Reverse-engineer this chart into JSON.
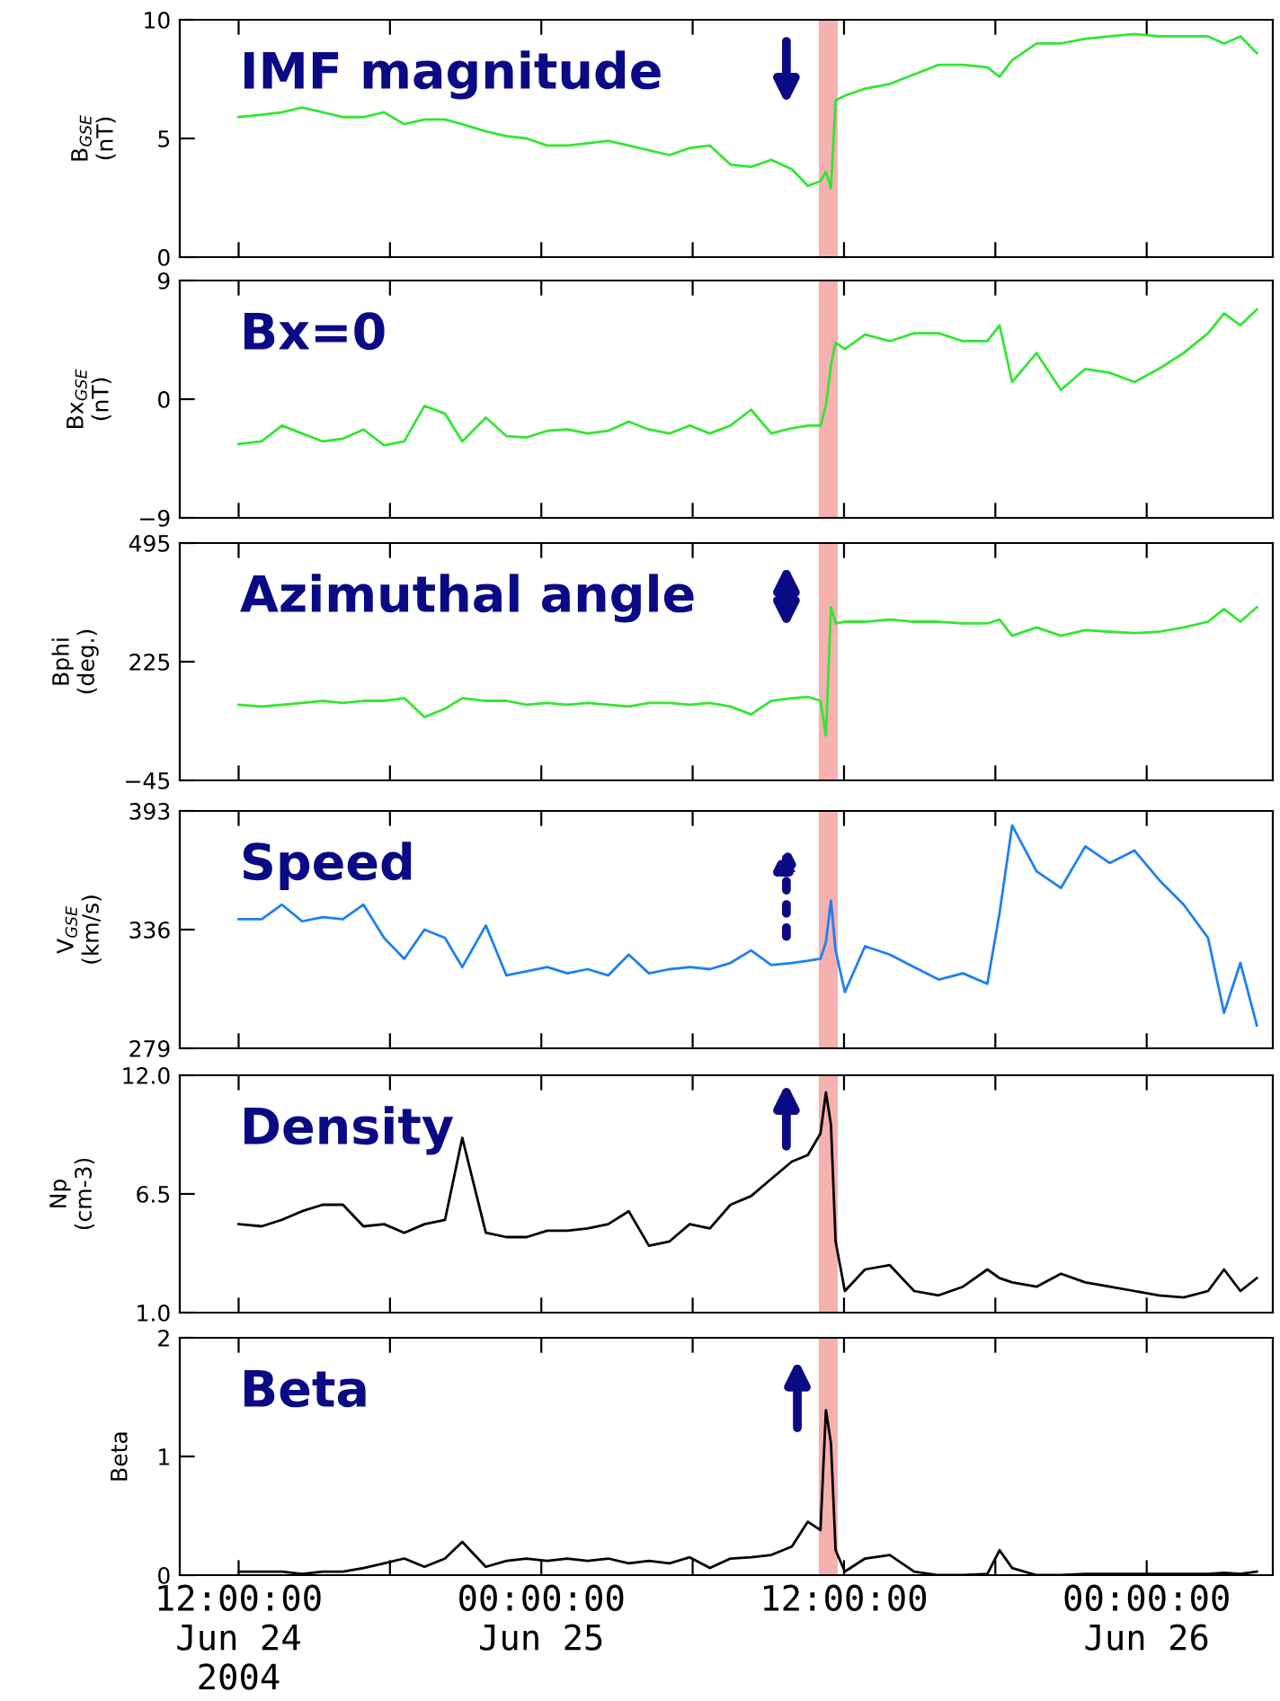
{
  "chart_data": [
    {
      "type": "line",
      "ylabel": "B$_{GSE}$\n(nT)",
      "annotations": [
        "IMF magnitude"
      ],
      "tick_labels": "y",
      "grid": false,
      "legend": false,
      "x": [
        "2004-06-24T12:00",
        "2004-06-24T12:55",
        "2004-06-24T13:43",
        "2004-06-24T14:31",
        "2004-06-24T15:20",
        "2004-06-24T16:08",
        "2004-06-24T16:57",
        "2004-06-24T17:46",
        "2004-06-24T18:34",
        "2004-06-24T19:22",
        "2004-06-24T20:11",
        "2004-06-24T20:52",
        "2004-06-24T21:48",
        "2004-06-24T22:37",
        "2004-06-24T23:25",
        "2004-06-25T00:14",
        "2004-06-25T01:02",
        "2004-06-25T01:50",
        "2004-06-25T02:39",
        "2004-06-25T03:28",
        "2004-06-25T04:16",
        "2004-06-25T05:05",
        "2004-06-25T05:53",
        "2004-06-25T06:41",
        "2004-06-25T07:30",
        "2004-06-25T08:19",
        "2004-06-25T09:07",
        "2004-06-25T09:56",
        "2004-06-25T10:34",
        "2004-06-25T11:04",
        "2004-06-25T11:17",
        "2004-06-25T11:29",
        "2004-06-25T11:40",
        "2004-06-25T12:02",
        "2004-06-25T12:50",
        "2004-06-25T13:49",
        "2004-06-25T14:47",
        "2004-06-25T15:45",
        "2004-06-25T16:43",
        "2004-06-25T17:41",
        "2004-06-25T18:10",
        "2004-06-25T18:40",
        "2004-06-25T19:38",
        "2004-06-25T20:36",
        "2004-06-25T21:34",
        "2004-06-25T22:32",
        "2004-06-25T23:31",
        "2004-06-26T00:29",
        "2004-06-26T01:28",
        "2004-06-26T02:26",
        "2004-06-26T03:04",
        "2004-06-26T03:43",
        "2004-06-26T04:22"
      ],
      "xlim": [
        "2004-06-24T09:40",
        "2004-06-26T05:00"
      ],
      "xticks": [
        {
          "value": "2004-06-24T12:00",
          "label": null
        },
        {
          "value": "2004-06-24T18:00",
          "label": null
        },
        {
          "value": "2004-06-25T00:00",
          "label": null
        },
        {
          "value": "2004-06-25T06:00",
          "label": null
        },
        {
          "value": "2004-06-25T12:00",
          "label": null
        },
        {
          "value": "2004-06-25T18:00",
          "label": null
        },
        {
          "value": "2004-06-26T00:00",
          "label": null
        }
      ],
      "ylim": [
        0,
        10
      ],
      "yticks": [
        0,
        5,
        10
      ],
      "bands": [
        {
          "axis": "x",
          "from": "2004-06-25T11:00",
          "to": "2004-06-25T11:45",
          "color": "#f5b0b0"
        }
      ],
      "series": [
        {
          "color": "#33e633",
          "values": [
            5.9,
            6.0,
            6.1,
            6.3,
            6.1,
            5.9,
            5.9,
            6.1,
            5.6,
            5.8,
            5.8,
            5.6,
            5.3,
            5.1,
            5.0,
            4.7,
            4.7,
            4.8,
            4.9,
            4.7,
            4.5,
            4.3,
            4.6,
            4.7,
            3.9,
            3.8,
            4.1,
            3.7,
            3.0,
            3.2,
            3.6,
            2.9,
            6.6,
            6.8,
            7.1,
            7.3,
            7.7,
            8.1,
            8.1,
            8.0,
            7.6,
            8.3,
            9.0,
            9.0,
            9.2,
            9.3,
            9.4,
            9.3,
            9.3,
            9.3,
            9.0,
            9.3,
            8.6
          ]
        }
      ]
    },
    {
      "type": "line",
      "ylabel": "Bx$_{GSE}$\n(nT)",
      "annotations": [
        "Bx=0"
      ],
      "tick_labels": "y",
      "grid": false,
      "legend": false,
      "x": [
        "2004-06-24T12:00",
        "2004-06-24T12:55",
        "2004-06-24T13:43",
        "2004-06-24T14:31",
        "2004-06-24T15:20",
        "2004-06-24T16:08",
        "2004-06-24T16:57",
        "2004-06-24T17:46",
        "2004-06-24T18:34",
        "2004-06-24T19:22",
        "2004-06-24T20:11",
        "2004-06-24T20:52",
        "2004-06-24T21:48",
        "2004-06-24T22:37",
        "2004-06-24T23:25",
        "2004-06-25T00:14",
        "2004-06-25T01:02",
        "2004-06-25T01:50",
        "2004-06-25T02:39",
        "2004-06-25T03:28",
        "2004-06-25T04:16",
        "2004-06-25T05:05",
        "2004-06-25T05:53",
        "2004-06-25T06:41",
        "2004-06-25T07:30",
        "2004-06-25T08:19",
        "2004-06-25T09:07",
        "2004-06-25T09:56",
        "2004-06-25T10:34",
        "2004-06-25T11:04",
        "2004-06-25T11:17",
        "2004-06-25T11:29",
        "2004-06-25T11:40",
        "2004-06-25T12:02",
        "2004-06-25T12:50",
        "2004-06-25T13:49",
        "2004-06-25T14:47",
        "2004-06-25T15:45",
        "2004-06-25T16:43",
        "2004-06-25T17:41",
        "2004-06-25T18:10",
        "2004-06-25T18:40",
        "2004-06-25T19:38",
        "2004-06-25T20:36",
        "2004-06-25T21:34",
        "2004-06-25T22:32",
        "2004-06-25T23:31",
        "2004-06-26T00:29",
        "2004-06-26T01:28",
        "2004-06-26T02:26",
        "2004-06-26T03:04",
        "2004-06-26T03:43",
        "2004-06-26T04:22"
      ],
      "xlim": [
        "2004-06-24T09:40",
        "2004-06-26T05:00"
      ],
      "xticks": [
        {
          "value": "2004-06-24T12:00",
          "label": null
        },
        {
          "value": "2004-06-24T18:00",
          "label": null
        },
        {
          "value": "2004-06-25T00:00",
          "label": null
        },
        {
          "value": "2004-06-25T06:00",
          "label": null
        },
        {
          "value": "2004-06-25T12:00",
          "label": null
        },
        {
          "value": "2004-06-25T18:00",
          "label": null
        },
        {
          "value": "2004-06-26T00:00",
          "label": null
        }
      ],
      "ylim": [
        -9,
        9
      ],
      "yticks": [
        {
          "value": -9,
          "label": "−9"
        },
        0,
        9
      ],
      "bands": [
        {
          "axis": "x",
          "from": "2004-06-25T11:00",
          "to": "2004-06-25T11:45",
          "color": "#f5b0b0"
        }
      ],
      "series": [
        {
          "color": "#33e633",
          "values": [
            -3.4,
            -3.2,
            -2.0,
            -2.6,
            -3.2,
            -3.0,
            -2.3,
            -3.5,
            -3.2,
            -0.5,
            -1.1,
            -3.2,
            -1.4,
            -2.8,
            -2.9,
            -2.4,
            -2.3,
            -2.6,
            -2.4,
            -1.7,
            -2.3,
            -2.6,
            -2.0,
            -2.6,
            -2.0,
            -0.8,
            -2.6,
            -2.2,
            -2.0,
            -2.0,
            -0.5,
            2.6,
            4.3,
            3.8,
            4.9,
            4.4,
            5.0,
            5.0,
            4.4,
            4.4,
            5.6,
            1.3,
            3.5,
            0.7,
            2.3,
            2.0,
            1.3,
            2.3,
            3.5,
            5.0,
            6.5,
            5.6,
            6.8
          ]
        }
      ]
    },
    {
      "type": "line",
      "ylabel": "Bphi\n(deg.)",
      "annotations": [
        "Azimuthal angle"
      ],
      "tick_labels": "y",
      "grid": false,
      "legend": false,
      "x": [
        "2004-06-24T12:00",
        "2004-06-24T12:55",
        "2004-06-24T13:43",
        "2004-06-24T14:31",
        "2004-06-24T15:20",
        "2004-06-24T16:08",
        "2004-06-24T16:57",
        "2004-06-24T17:46",
        "2004-06-24T18:34",
        "2004-06-24T19:22",
        "2004-06-24T20:11",
        "2004-06-24T20:52",
        "2004-06-24T21:48",
        "2004-06-24T22:37",
        "2004-06-24T23:25",
        "2004-06-25T00:14",
        "2004-06-25T01:02",
        "2004-06-25T01:50",
        "2004-06-25T02:39",
        "2004-06-25T03:28",
        "2004-06-25T04:16",
        "2004-06-25T05:05",
        "2004-06-25T05:53",
        "2004-06-25T06:41",
        "2004-06-25T07:30",
        "2004-06-25T08:19",
        "2004-06-25T09:07",
        "2004-06-25T09:56",
        "2004-06-25T10:34",
        "2004-06-25T11:04",
        "2004-06-25T11:17",
        "2004-06-25T11:29",
        "2004-06-25T11:40",
        "2004-06-25T12:02",
        "2004-06-25T12:50",
        "2004-06-25T13:49",
        "2004-06-25T14:47",
        "2004-06-25T15:45",
        "2004-06-25T16:43",
        "2004-06-25T17:41",
        "2004-06-25T18:10",
        "2004-06-25T18:40",
        "2004-06-25T19:38",
        "2004-06-25T20:36",
        "2004-06-25T21:34",
        "2004-06-25T22:32",
        "2004-06-25T23:31",
        "2004-06-26T00:29",
        "2004-06-26T01:28",
        "2004-06-26T02:26",
        "2004-06-26T03:04",
        "2004-06-26T03:43",
        "2004-06-26T04:22"
      ],
      "xlim": [
        "2004-06-24T09:40",
        "2004-06-26T05:00"
      ],
      "xticks": [
        {
          "value": "2004-06-24T12:00",
          "label": null
        },
        {
          "value": "2004-06-24T18:00",
          "label": null
        },
        {
          "value": "2004-06-25T00:00",
          "label": null
        },
        {
          "value": "2004-06-25T06:00",
          "label": null
        },
        {
          "value": "2004-06-25T12:00",
          "label": null
        },
        {
          "value": "2004-06-25T18:00",
          "label": null
        },
        {
          "value": "2004-06-26T00:00",
          "label": null
        }
      ],
      "ylim": [
        -45,
        495
      ],
      "yticks": [
        {
          "value": -45,
          "label": "−45"
        },
        225,
        495
      ],
      "bands": [
        {
          "axis": "x",
          "from": "2004-06-25T11:00",
          "to": "2004-06-25T11:45",
          "color": "#f5b0b0"
        }
      ],
      "series": [
        {
          "color": "#33e633",
          "values": [
            127,
            123,
            127,
            131,
            136,
            131,
            136,
            136,
            142,
            99,
            118,
            142,
            136,
            136,
            127,
            131,
            127,
            131,
            127,
            123,
            131,
            131,
            127,
            131,
            123,
            105,
            136,
            142,
            145,
            136,
            57,
            349,
            312,
            316,
            316,
            321,
            316,
            316,
            312,
            312,
            321,
            284,
            303,
            284,
            297,
            293,
            290,
            293,
            303,
            316,
            345,
            316,
            349
          ]
        }
      ]
    },
    {
      "type": "line",
      "ylabel": "V$_{GSE}$\n(km/s)",
      "annotations": [
        "Speed"
      ],
      "tick_labels": "y",
      "grid": false,
      "legend": false,
      "x": [
        "2004-06-24T12:00",
        "2004-06-24T12:55",
        "2004-06-24T13:43",
        "2004-06-24T14:31",
        "2004-06-24T15:20",
        "2004-06-24T16:08",
        "2004-06-24T16:57",
        "2004-06-24T17:46",
        "2004-06-24T18:34",
        "2004-06-24T19:22",
        "2004-06-24T20:11",
        "2004-06-24T20:52",
        "2004-06-24T21:48",
        "2004-06-24T22:37",
        "2004-06-24T23:25",
        "2004-06-25T00:14",
        "2004-06-25T01:02",
        "2004-06-25T01:50",
        "2004-06-25T02:39",
        "2004-06-25T03:28",
        "2004-06-25T04:16",
        "2004-06-25T05:05",
        "2004-06-25T05:53",
        "2004-06-25T06:41",
        "2004-06-25T07:30",
        "2004-06-25T08:19",
        "2004-06-25T09:07",
        "2004-06-25T09:56",
        "2004-06-25T10:34",
        "2004-06-25T11:04",
        "2004-06-25T11:17",
        "2004-06-25T11:29",
        "2004-06-25T11:40",
        "2004-06-25T12:02",
        "2004-06-25T12:50",
        "2004-06-25T13:49",
        "2004-06-25T14:47",
        "2004-06-25T15:45",
        "2004-06-25T16:43",
        "2004-06-25T17:41",
        "2004-06-25T18:10",
        "2004-06-25T18:40",
        "2004-06-25T19:38",
        "2004-06-25T20:36",
        "2004-06-25T21:34",
        "2004-06-25T22:32",
        "2004-06-25T23:31",
        "2004-06-26T00:29",
        "2004-06-26T01:28",
        "2004-06-26T02:26",
        "2004-06-26T03:04",
        "2004-06-26T03:43",
        "2004-06-26T04:22"
      ],
      "xlim": [
        "2004-06-24T09:40",
        "2004-06-26T05:00"
      ],
      "xticks": [
        {
          "value": "2004-06-24T12:00",
          "label": null
        },
        {
          "value": "2004-06-24T18:00",
          "label": null
        },
        {
          "value": "2004-06-25T00:00",
          "label": null
        },
        {
          "value": "2004-06-25T06:00",
          "label": null
        },
        {
          "value": "2004-06-25T12:00",
          "label": null
        },
        {
          "value": "2004-06-25T18:00",
          "label": null
        },
        {
          "value": "2004-06-26T00:00",
          "label": null
        }
      ],
      "ylim": [
        279,
        393
      ],
      "yticks": [
        279,
        336,
        393
      ],
      "bands": [
        {
          "axis": "x",
          "from": "2004-06-25T11:00",
          "to": "2004-06-25T11:45",
          "color": "#f5b0b0"
        }
      ],
      "series": [
        {
          "color": "#1e80ee",
          "values": [
            341,
            341,
            348,
            340,
            342,
            341,
            348,
            332,
            322,
            336,
            332,
            318,
            338,
            314,
            316,
            318,
            315,
            317,
            314,
            324,
            315,
            317,
            318,
            317,
            320,
            326,
            319,
            320,
            321,
            322,
            330,
            350,
            326,
            306,
            328,
            324,
            318,
            312,
            315,
            310,
            344,
            386,
            364,
            356,
            376,
            368,
            374,
            360,
            348,
            332,
            296,
            320,
            290
          ]
        }
      ]
    },
    {
      "type": "line",
      "ylabel": "Np\n(cm-3)",
      "annotations": [
        "Density"
      ],
      "tick_labels": "y",
      "grid": false,
      "legend": false,
      "x": [
        "2004-06-24T12:00",
        "2004-06-24T12:55",
        "2004-06-24T13:43",
        "2004-06-24T14:31",
        "2004-06-24T15:20",
        "2004-06-24T16:08",
        "2004-06-24T16:57",
        "2004-06-24T17:46",
        "2004-06-24T18:34",
        "2004-06-24T19:22",
        "2004-06-24T20:11",
        "2004-06-24T20:52",
        "2004-06-24T21:48",
        "2004-06-24T22:37",
        "2004-06-24T23:25",
        "2004-06-25T00:14",
        "2004-06-25T01:02",
        "2004-06-25T01:50",
        "2004-06-25T02:39",
        "2004-06-25T03:28",
        "2004-06-25T04:16",
        "2004-06-25T05:05",
        "2004-06-25T05:53",
        "2004-06-25T06:41",
        "2004-06-25T07:30",
        "2004-06-25T08:19",
        "2004-06-25T09:07",
        "2004-06-25T09:56",
        "2004-06-25T10:34",
        "2004-06-25T11:04",
        "2004-06-25T11:17",
        "2004-06-25T11:29",
        "2004-06-25T11:40",
        "2004-06-25T12:02",
        "2004-06-25T12:50",
        "2004-06-25T13:49",
        "2004-06-25T14:47",
        "2004-06-25T15:45",
        "2004-06-25T16:43",
        "2004-06-25T17:41",
        "2004-06-25T18:10",
        "2004-06-25T18:40",
        "2004-06-25T19:38",
        "2004-06-25T20:36",
        "2004-06-25T21:34",
        "2004-06-25T22:32",
        "2004-06-25T23:31",
        "2004-06-26T00:29",
        "2004-06-26T01:28",
        "2004-06-26T02:26",
        "2004-06-26T03:04",
        "2004-06-26T03:43",
        "2004-06-26T04:22"
      ],
      "xlim": [
        "2004-06-24T09:40",
        "2004-06-26T05:00"
      ],
      "xticks": [
        {
          "value": "2004-06-24T12:00",
          "label": null
        },
        {
          "value": "2004-06-24T18:00",
          "label": null
        },
        {
          "value": "2004-06-25T00:00",
          "label": null
        },
        {
          "value": "2004-06-25T06:00",
          "label": null
        },
        {
          "value": "2004-06-25T12:00",
          "label": null
        },
        {
          "value": "2004-06-25T18:00",
          "label": null
        },
        {
          "value": "2004-06-26T00:00",
          "label": null
        }
      ],
      "ylim": [
        1.0,
        12.0
      ],
      "yticks": [
        {
          "value": 1.0,
          "label": "1.0"
        },
        {
          "value": 6.5,
          "label": "6.5"
        },
        {
          "value": 12.0,
          "label": "12.0"
        }
      ],
      "bands": [
        {
          "axis": "x",
          "from": "2004-06-25T11:00",
          "to": "2004-06-25T11:45",
          "color": "#f5b0b0"
        }
      ],
      "series": [
        {
          "color": "#000000",
          "values": [
            5.1,
            5.0,
            5.3,
            5.7,
            6.0,
            6.0,
            5.0,
            5.1,
            4.7,
            5.1,
            5.3,
            9.1,
            4.7,
            4.5,
            4.5,
            4.8,
            4.8,
            4.9,
            5.1,
            5.7,
            4.1,
            4.3,
            5.1,
            4.9,
            6.0,
            6.4,
            7.2,
            8.0,
            8.3,
            9.3,
            11.2,
            9.7,
            4.3,
            2.0,
            3.0,
            3.2,
            2.0,
            1.8,
            2.2,
            3.0,
            2.6,
            2.4,
            2.2,
            2.8,
            2.4,
            2.2,
            2.0,
            1.8,
            1.7,
            2.0,
            3.0,
            2.0,
            2.6
          ]
        }
      ]
    },
    {
      "type": "line",
      "ylabel": "Beta",
      "annotations": [
        "Beta"
      ],
      "grid": false,
      "legend": false,
      "x": [
        "2004-06-24T12:00",
        "2004-06-24T12:55",
        "2004-06-24T13:43",
        "2004-06-24T14:31",
        "2004-06-24T15:20",
        "2004-06-24T16:08",
        "2004-06-24T16:57",
        "2004-06-24T17:46",
        "2004-06-24T18:34",
        "2004-06-24T19:22",
        "2004-06-24T20:11",
        "2004-06-24T20:52",
        "2004-06-24T21:48",
        "2004-06-24T22:37",
        "2004-06-24T23:25",
        "2004-06-25T00:14",
        "2004-06-25T01:02",
        "2004-06-25T01:50",
        "2004-06-25T02:39",
        "2004-06-25T03:28",
        "2004-06-25T04:16",
        "2004-06-25T05:05",
        "2004-06-25T05:53",
        "2004-06-25T06:41",
        "2004-06-25T07:30",
        "2004-06-25T08:19",
        "2004-06-25T09:07",
        "2004-06-25T09:56",
        "2004-06-25T10:34",
        "2004-06-25T11:04",
        "2004-06-25T11:17",
        "2004-06-25T11:29",
        "2004-06-25T11:40",
        "2004-06-25T12:02",
        "2004-06-25T12:50",
        "2004-06-25T13:49",
        "2004-06-25T14:47",
        "2004-06-25T15:45",
        "2004-06-25T16:43",
        "2004-06-25T17:41",
        "2004-06-25T18:10",
        "2004-06-25T18:40",
        "2004-06-25T19:38",
        "2004-06-25T20:36",
        "2004-06-25T21:34",
        "2004-06-25T22:32",
        "2004-06-25T23:31",
        "2004-06-26T00:29",
        "2004-06-26T01:28",
        "2004-06-26T02:26",
        "2004-06-26T03:04",
        "2004-06-26T03:43",
        "2004-06-26T04:22"
      ],
      "xlim": [
        "2004-06-24T09:40",
        "2004-06-26T05:00"
      ],
      "xticks": [
        {
          "value": "2004-06-24T12:00",
          "label": "12:00:00\nJun 24\n2004"
        },
        {
          "value": "2004-06-24T18:00",
          "label": null
        },
        {
          "value": "2004-06-25T00:00",
          "label": "00:00:00\nJun 25"
        },
        {
          "value": "2004-06-25T06:00",
          "label": null
        },
        {
          "value": "2004-06-25T12:00",
          "label": "12:00:00"
        },
        {
          "value": "2004-06-25T18:00",
          "label": null
        },
        {
          "value": "2004-06-26T00:00",
          "label": "00:00:00\nJun 26"
        }
      ],
      "ylim": [
        0,
        2
      ],
      "yticks": [
        0,
        1,
        2
      ],
      "bands": [
        {
          "axis": "x",
          "from": "2004-06-25T11:00",
          "to": "2004-06-25T11:45",
          "color": "#f5b0b0"
        }
      ],
      "series": [
        {
          "color": "#000000",
          "values": [
            0.03,
            0.03,
            0.03,
            0.01,
            0.03,
            0.03,
            0.06,
            0.1,
            0.14,
            0.07,
            0.14,
            0.28,
            0.07,
            0.12,
            0.14,
            0.12,
            0.14,
            0.12,
            0.14,
            0.1,
            0.12,
            0.1,
            0.15,
            0.06,
            0.14,
            0.15,
            0.17,
            0.24,
            0.45,
            0.38,
            1.39,
            1.11,
            0.21,
            0.03,
            0.14,
            0.17,
            0.03,
            0.0,
            0.0,
            0.01,
            0.21,
            0.06,
            0.0,
            0.0,
            0.01,
            0.01,
            0.01,
            0.01,
            0.01,
            0.01,
            0.02,
            0.01,
            0.03
          ]
        }
      ]
    }
  ]
}
